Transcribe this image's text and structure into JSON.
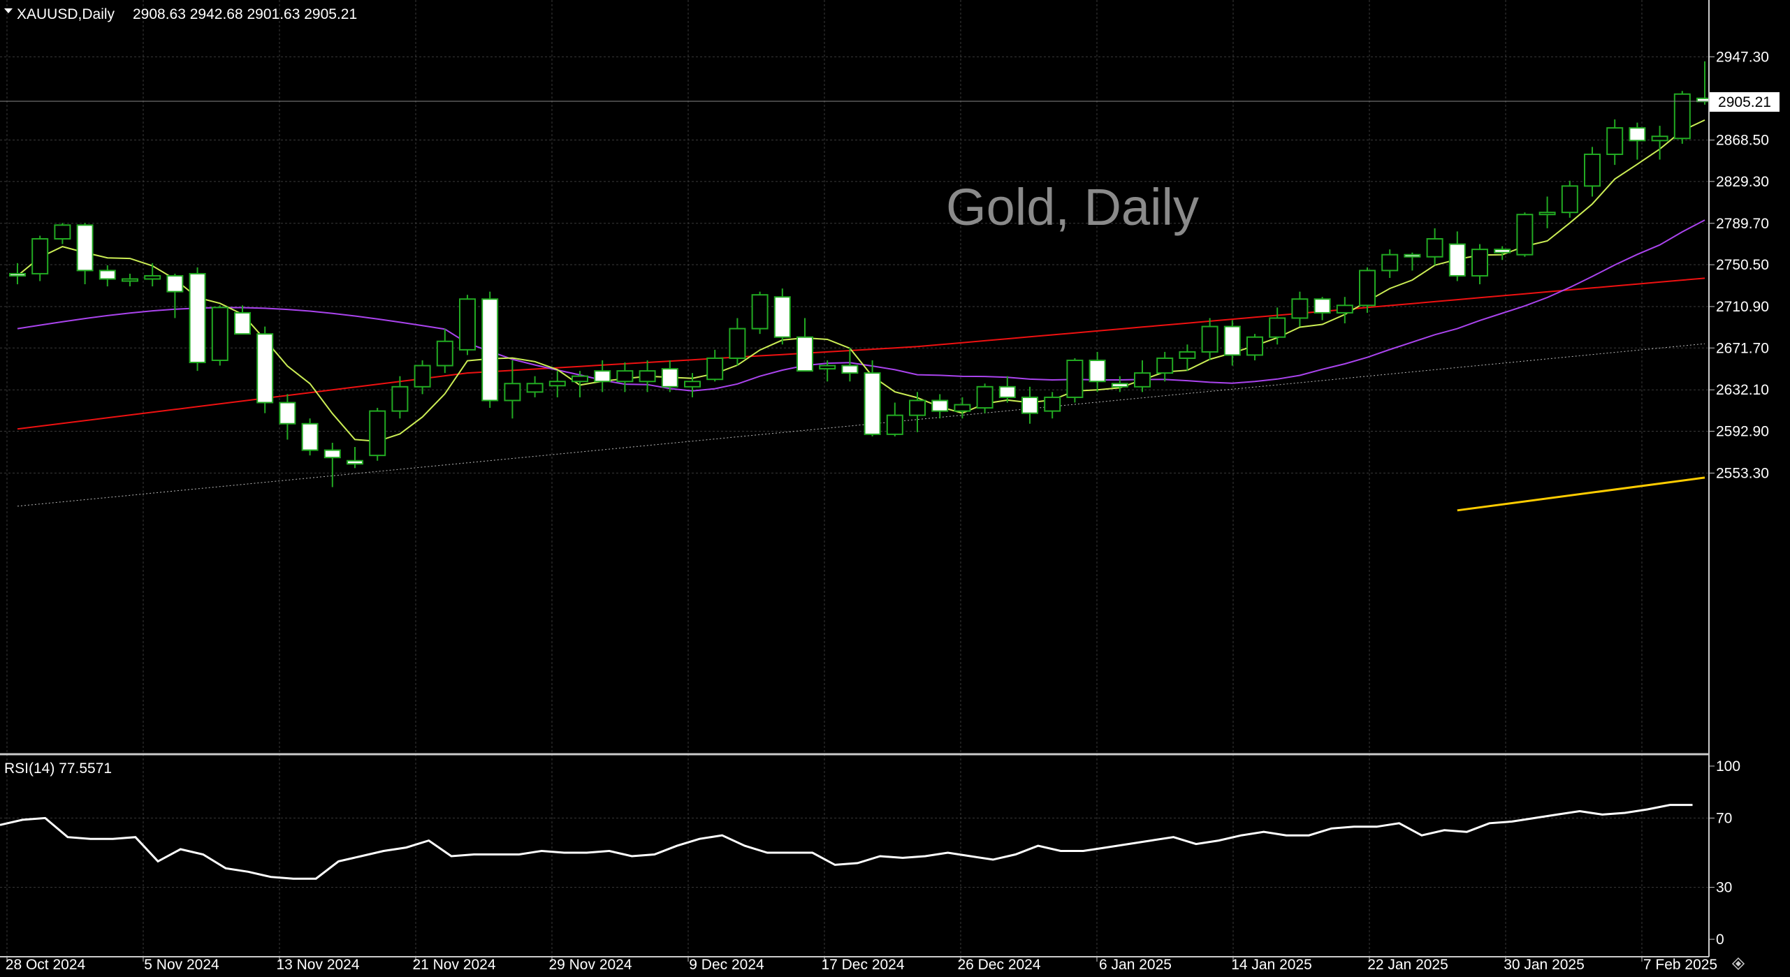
{
  "header": {
    "symbol": "XAUUSD,Daily",
    "ohlc": "2908.63 2942.68 2901.63 2905.21"
  },
  "watermark": "Gold, Daily",
  "price_axis": {
    "ticks": [
      "2947.30",
      "2868.50",
      "2829.30",
      "2789.70",
      "2750.50",
      "2710.90",
      "2671.70",
      "2632.10",
      "2592.90",
      "2553.30"
    ],
    "current_price_label": "2905.21"
  },
  "rsi_panel": {
    "label": "RSI(14) 77.5571",
    "ticks": [
      "100",
      "70",
      "30",
      "0"
    ]
  },
  "date_axis": {
    "labels": [
      "28 Oct 2024",
      "5 Nov 2024",
      "13 Nov 2024",
      "21 Nov 2024",
      "29 Nov 2024",
      "9 Dec 2024",
      "17 Dec 2024",
      "26 Dec 2024",
      "6 Jan 2025",
      "14 Jan 2025",
      "22 Jan 2025",
      "30 Jan 2025",
      "7 Feb 2025"
    ]
  },
  "colors": {
    "background": "#000000",
    "grid": "#3a3a3a",
    "bull_candle": "#000000",
    "bear_candle": "#ffffff",
    "candle_outline_wick": "#22aa22",
    "ma_fast": "#ccee55",
    "ma_medium": "#aa44ee",
    "ma_slow": "#ee1111",
    "ma_very_slow": "#bbbbbb",
    "ma_long": "#ffcc00",
    "rsi_line": "#ffffff",
    "watermark": "#8a8a8a"
  },
  "chart_data": {
    "type": "candlestick",
    "x_labels": [
      "28 Oct 2024",
      "5 Nov 2024",
      "13 Nov 2024",
      "21 Nov 2024",
      "29 Nov 2024",
      "9 Dec 2024",
      "17 Dec 2024",
      "26 Dec 2024",
      "6 Jan 2025",
      "14 Jan 2025",
      "22 Jan 2025",
      "30 Jan 2025",
      "7 Feb 2025"
    ],
    "y_range": [
      2515,
      2975
    ],
    "ohlc": [
      [
        2742,
        2752,
        2732,
        2740
      ],
      [
        2742,
        2778,
        2735,
        2775
      ],
      [
        2775,
        2790,
        2770,
        2788
      ],
      [
        2788,
        2790,
        2732,
        2745
      ],
      [
        2745,
        2750,
        2730,
        2737
      ],
      [
        2737,
        2742,
        2730,
        2737
      ],
      [
        2737,
        2752,
        2730,
        2740
      ],
      [
        2740,
        2742,
        2700,
        2725
      ],
      [
        2742,
        2748,
        2650,
        2658
      ],
      [
        2660,
        2712,
        2655,
        2710
      ],
      [
        2705,
        2712,
        2685,
        2685
      ],
      [
        2685,
        2692,
        2610,
        2620
      ],
      [
        2620,
        2628,
        2585,
        2600
      ],
      [
        2600,
        2605,
        2570,
        2575
      ],
      [
        2575,
        2582,
        2540,
        2568
      ],
      [
        2565,
        2578,
        2558,
        2562
      ],
      [
        2570,
        2615,
        2565,
        2612
      ],
      [
        2612,
        2645,
        2605,
        2635
      ],
      [
        2635,
        2660,
        2628,
        2655
      ],
      [
        2655,
        2690,
        2648,
        2678
      ],
      [
        2670,
        2722,
        2665,
        2718
      ],
      [
        2718,
        2725,
        2615,
        2622
      ],
      [
        2622,
        2660,
        2605,
        2638
      ],
      [
        2630,
        2645,
        2625,
        2638
      ],
      [
        2636,
        2650,
        2625,
        2640
      ],
      [
        2640,
        2650,
        2625,
        2645
      ],
      [
        2650,
        2660,
        2630,
        2640
      ],
      [
        2640,
        2658,
        2630,
        2650
      ],
      [
        2640,
        2660,
        2630,
        2650
      ],
      [
        2652,
        2660,
        2630,
        2635
      ],
      [
        2635,
        2648,
        2625,
        2640
      ],
      [
        2642,
        2670,
        2640,
        2662
      ],
      [
        2662,
        2700,
        2655,
        2690
      ],
      [
        2690,
        2725,
        2685,
        2722
      ],
      [
        2720,
        2728,
        2675,
        2682
      ],
      [
        2682,
        2700,
        2650,
        2650
      ],
      [
        2652,
        2660,
        2640,
        2655
      ],
      [
        2655,
        2672,
        2640,
        2648
      ],
      [
        2648,
        2660,
        2588,
        2590
      ],
      [
        2590,
        2620,
        2588,
        2608
      ],
      [
        2608,
        2630,
        2592,
        2622
      ],
      [
        2622,
        2628,
        2605,
        2612
      ],
      [
        2612,
        2625,
        2605,
        2618
      ],
      [
        2615,
        2638,
        2610,
        2635
      ],
      [
        2635,
        2645,
        2620,
        2625
      ],
      [
        2625,
        2635,
        2600,
        2610
      ],
      [
        2612,
        2630,
        2605,
        2625
      ],
      [
        2625,
        2662,
        2620,
        2660
      ],
      [
        2660,
        2668,
        2630,
        2640
      ],
      [
        2638,
        2645,
        2630,
        2635
      ],
      [
        2635,
        2660,
        2630,
        2648
      ],
      [
        2648,
        2668,
        2640,
        2662
      ],
      [
        2662,
        2675,
        2650,
        2668
      ],
      [
        2668,
        2700,
        2660,
        2692
      ],
      [
        2692,
        2698,
        2655,
        2665
      ],
      [
        2665,
        2685,
        2660,
        2682
      ],
      [
        2682,
        2710,
        2675,
        2700
      ],
      [
        2700,
        2725,
        2692,
        2718
      ],
      [
        2718,
        2720,
        2698,
        2705
      ],
      [
        2705,
        2720,
        2695,
        2712
      ],
      [
        2712,
        2748,
        2705,
        2745
      ],
      [
        2745,
        2765,
        2738,
        2760
      ],
      [
        2760,
        2762,
        2745,
        2758
      ],
      [
        2758,
        2785,
        2750,
        2775
      ],
      [
        2770,
        2782,
        2735,
        2740
      ],
      [
        2740,
        2770,
        2732,
        2765
      ],
      [
        2765,
        2768,
        2755,
        2762
      ],
      [
        2760,
        2800,
        2758,
        2798
      ],
      [
        2798,
        2815,
        2785,
        2800
      ],
      [
        2800,
        2830,
        2795,
        2825
      ],
      [
        2825,
        2862,
        2815,
        2855
      ],
      [
        2855,
        2888,
        2845,
        2880
      ],
      [
        2880,
        2885,
        2850,
        2868
      ],
      [
        2868,
        2882,
        2850,
        2872
      ],
      [
        2870,
        2915,
        2865,
        2912
      ],
      [
        2908,
        2943,
        2902,
        2905
      ]
    ],
    "rsi": [
      66,
      69,
      70,
      59,
      58,
      58,
      59,
      45,
      52,
      49,
      41,
      39,
      36,
      35,
      35,
      45,
      48,
      51,
      53,
      57,
      48,
      49,
      49,
      49,
      51,
      50,
      50,
      51,
      48,
      49,
      54,
      58,
      60,
      54,
      50,
      50,
      50,
      43,
      44,
      48,
      47,
      48,
      50,
      48,
      46,
      49,
      54,
      51,
      51,
      53,
      55,
      57,
      59,
      55,
      57,
      60,
      62,
      60,
      60,
      64,
      65,
      65,
      67,
      60,
      63,
      62,
      67,
      68,
      70,
      72,
      74,
      72,
      73,
      75,
      77.6,
      77.6
    ]
  }
}
